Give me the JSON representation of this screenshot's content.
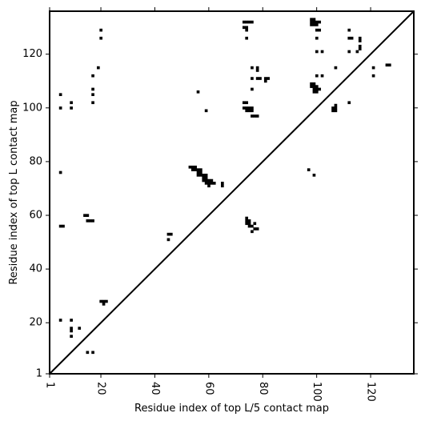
{
  "colors": {
    "background": "#ffffff",
    "foreground": "#000000"
  },
  "chart_data": {
    "type": "scatter",
    "title": "",
    "xlabel": "Residue index of top L/5 contact map",
    "ylabel": "Residue index of top L contact map",
    "xlim": [
      1,
      136
    ],
    "ylim": [
      1,
      136
    ],
    "x_ticks": [
      1,
      20,
      40,
      60,
      80,
      100,
      120
    ],
    "y_ticks": [
      1,
      20,
      40,
      60,
      80,
      100,
      120
    ],
    "grid": false,
    "marker": "square",
    "diagonal_line": true,
    "upper_triangle_points": [
      [
        53,
        78
      ],
      [
        54,
        78
      ],
      [
        55,
        78
      ],
      [
        54,
        77
      ],
      [
        55,
        77
      ],
      [
        56,
        77
      ],
      [
        57,
        77
      ],
      [
        56,
        76
      ],
      [
        57,
        76
      ],
      [
        56,
        75
      ],
      [
        57,
        75
      ],
      [
        58,
        75
      ],
      [
        59,
        75
      ],
      [
        58,
        74
      ],
      [
        59,
        74
      ],
      [
        58,
        73
      ],
      [
        59,
        73
      ],
      [
        60,
        73
      ],
      [
        61,
        73
      ],
      [
        59,
        72
      ],
      [
        60,
        72
      ],
      [
        61,
        72
      ],
      [
        62,
        72
      ],
      [
        60,
        71
      ],
      [
        65,
        72
      ],
      [
        65,
        71
      ],
      [
        74,
        59
      ],
      [
        74,
        58
      ],
      [
        75,
        58
      ],
      [
        74,
        57
      ],
      [
        75,
        57
      ],
      [
        75,
        56
      ],
      [
        76,
        56
      ],
      [
        77,
        55
      ],
      [
        78,
        55
      ],
      [
        76,
        54
      ],
      [
        77,
        57
      ],
      [
        45,
        53
      ],
      [
        46,
        53
      ],
      [
        45,
        51
      ],
      [
        73,
        132
      ],
      [
        74,
        132
      ],
      [
        75,
        132
      ],
      [
        76,
        132
      ],
      [
        73,
        130
      ],
      [
        74,
        130
      ],
      [
        74,
        129
      ],
      [
        74,
        126
      ],
      [
        76,
        115
      ],
      [
        78,
        115
      ],
      [
        78,
        114
      ],
      [
        76,
        111
      ],
      [
        78,
        111
      ],
      [
        79,
        111
      ],
      [
        81,
        111
      ],
      [
        82,
        111
      ],
      [
        81,
        110
      ],
      [
        76,
        107
      ],
      [
        73,
        102
      ],
      [
        74,
        102
      ],
      [
        73,
        100
      ],
      [
        74,
        100
      ],
      [
        75,
        100
      ],
      [
        76,
        100
      ],
      [
        74,
        99
      ],
      [
        75,
        99
      ],
      [
        76,
        99
      ],
      [
        77,
        97
      ],
      [
        78,
        97
      ],
      [
        76,
        97
      ],
      [
        56,
        106
      ],
      [
        59,
        99
      ],
      [
        98,
        133
      ],
      [
        99,
        133
      ],
      [
        98,
        132
      ],
      [
        99,
        132
      ],
      [
        100,
        132
      ],
      [
        101,
        132
      ],
      [
        98,
        131
      ],
      [
        99,
        131
      ],
      [
        100,
        131
      ],
      [
        100,
        129
      ],
      [
        101,
        129
      ],
      [
        100,
        126
      ],
      [
        100,
        121
      ],
      [
        102,
        121
      ],
      [
        100,
        112
      ],
      [
        102,
        112
      ],
      [
        98,
        109
      ],
      [
        99,
        109
      ],
      [
        98,
        108
      ],
      [
        99,
        108
      ],
      [
        100,
        108
      ],
      [
        99,
        107
      ],
      [
        100,
        107
      ],
      [
        101,
        107
      ],
      [
        99,
        106
      ],
      [
        100,
        106
      ],
      [
        107,
        101
      ],
      [
        106,
        100
      ],
      [
        107,
        100
      ],
      [
        106,
        99
      ],
      [
        107,
        99
      ],
      [
        107,
        115
      ],
      [
        112,
        102
      ],
      [
        112,
        129
      ],
      [
        112,
        126
      ],
      [
        113,
        126
      ],
      [
        112,
        121
      ],
      [
        115,
        121
      ],
      [
        116,
        126
      ],
      [
        116,
        125
      ],
      [
        116,
        123
      ],
      [
        116,
        122
      ],
      [
        121,
        115
      ],
      [
        121,
        112
      ],
      [
        126,
        116
      ],
      [
        127,
        116
      ],
      [
        97,
        77
      ],
      [
        99,
        75
      ]
    ],
    "lower_triangle_points": [
      [
        5,
        105
      ],
      [
        5,
        100
      ],
      [
        9,
        102
      ],
      [
        9,
        100
      ],
      [
        5,
        76
      ],
      [
        5,
        56
      ],
      [
        6,
        56
      ],
      [
        5,
        21
      ],
      [
        9,
        21
      ],
      [
        9,
        18
      ],
      [
        9,
        17
      ],
      [
        9,
        15
      ],
      [
        12,
        18
      ],
      [
        15,
        9
      ],
      [
        17,
        9
      ],
      [
        14,
        60
      ],
      [
        15,
        60
      ],
      [
        15,
        58
      ],
      [
        16,
        58
      ],
      [
        17,
        58
      ],
      [
        17,
        112
      ],
      [
        17,
        107
      ],
      [
        17,
        105
      ],
      [
        17,
        102
      ],
      [
        19,
        115
      ],
      [
        20,
        129
      ],
      [
        20,
        126
      ],
      [
        20,
        28
      ],
      [
        21,
        28
      ],
      [
        22,
        28
      ],
      [
        21,
        27
      ]
    ]
  }
}
